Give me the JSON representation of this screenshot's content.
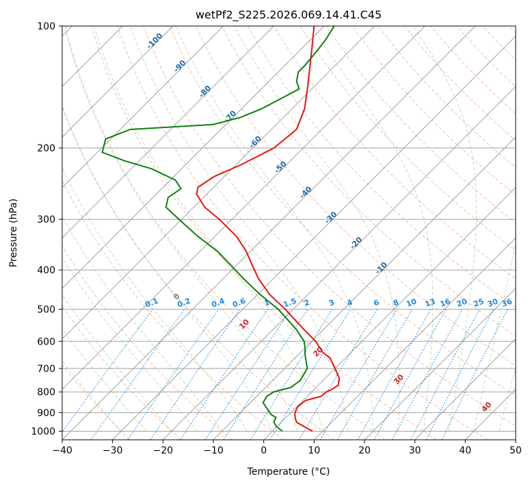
{
  "chart_data": {
    "type": "line",
    "title": "wetPf2_S225.2026.069.14.41.C45",
    "xlabel": "Temperature (°C)",
    "ylabel": "Pressure (hPa)",
    "xlim": [
      -40,
      50
    ],
    "ylim": [
      1050,
      100
    ],
    "y_scale": "log",
    "grid": true,
    "skew": 45,
    "x_ticks": [
      -40,
      -30,
      -20,
      -10,
      0,
      10,
      20,
      30,
      40,
      50
    ],
    "y_ticks": [
      100,
      200,
      300,
      400,
      500,
      600,
      700,
      800,
      900,
      1000
    ],
    "series": [
      {
        "key": "temperature",
        "color": "#e8120c",
        "points": [
          [
            1000,
            8.0
          ],
          [
            975,
            5.5
          ],
          [
            950,
            3.0
          ],
          [
            925,
            1.8
          ],
          [
            900,
            0.8
          ],
          [
            870,
            0.2
          ],
          [
            840,
            0.5
          ],
          [
            820,
            2.8
          ],
          [
            800,
            2.9
          ],
          [
            790,
            3.5
          ],
          [
            770,
            4.0
          ],
          [
            740,
            2.8
          ],
          [
            700,
            0.0
          ],
          [
            660,
            -3.0
          ],
          [
            640,
            -5.5
          ],
          [
            600,
            -9.2
          ],
          [
            560,
            -14.0
          ],
          [
            500,
            -21.6
          ],
          [
            460,
            -27.6
          ],
          [
            420,
            -33.0
          ],
          [
            390,
            -36.8
          ],
          [
            360,
            -40.8
          ],
          [
            330,
            -45.8
          ],
          [
            300,
            -52.5
          ],
          [
            280,
            -57.8
          ],
          [
            260,
            -62.0
          ],
          [
            250,
            -63.1
          ],
          [
            235,
            -62.0
          ],
          [
            220,
            -59.0
          ],
          [
            200,
            -55.8
          ],
          [
            180,
            -55.0
          ],
          [
            160,
            -57.5
          ],
          [
            140,
            -61.5
          ],
          [
            125,
            -65.0
          ],
          [
            110,
            -69.0
          ],
          [
            100,
            -72.0
          ]
        ]
      },
      {
        "key": "dewpoint",
        "color": "#0d7e0d",
        "points": [
          [
            1000,
            2.0
          ],
          [
            975,
            0.0
          ],
          [
            950,
            -1.5
          ],
          [
            925,
            -2.0
          ],
          [
            910,
            -3.5
          ],
          [
            880,
            -5.5
          ],
          [
            850,
            -7.5
          ],
          [
            820,
            -8.0
          ],
          [
            800,
            -7.5
          ],
          [
            780,
            -5.0
          ],
          [
            750,
            -4.5
          ],
          [
            700,
            -5.5
          ],
          [
            650,
            -8.5
          ],
          [
            620,
            -10.2
          ],
          [
            600,
            -11.5
          ],
          [
            560,
            -15.5
          ],
          [
            500,
            -23.0
          ],
          [
            460,
            -29.5
          ],
          [
            420,
            -36.0
          ],
          [
            390,
            -41.0
          ],
          [
            360,
            -46.5
          ],
          [
            330,
            -53.5
          ],
          [
            300,
            -60.5
          ],
          [
            280,
            -65.5
          ],
          [
            265,
            -67.0
          ],
          [
            252,
            -66.2
          ],
          [
            240,
            -69.0
          ],
          [
            225,
            -76.0
          ],
          [
            215,
            -83.0
          ],
          [
            205,
            -89.0
          ],
          [
            190,
            -91.0
          ],
          [
            180,
            -88.0
          ],
          [
            177,
            -79.0
          ],
          [
            175,
            -72.5
          ],
          [
            168,
            -68.5
          ],
          [
            160,
            -66.0
          ],
          [
            150,
            -64.0
          ],
          [
            143,
            -62.5
          ],
          [
            137,
            -64.5
          ],
          [
            130,
            -66.0
          ],
          [
            125,
            -66.0
          ],
          [
            115,
            -66.5
          ],
          [
            108,
            -67.0
          ],
          [
            100,
            -68.0
          ]
        ]
      }
    ],
    "dry_adiabat_labels": [
      "-100",
      "-90",
      "-80",
      "-70",
      "-60",
      "-50",
      "-40",
      "-30",
      "-20",
      "-10",
      "0",
      "10",
      "20",
      "30",
      "40"
    ],
    "mixing_ratio_labels": [
      "0.1",
      "0.2",
      "0.4",
      "0.6",
      "1",
      "1.5",
      "2",
      "3",
      "4",
      "6",
      "8",
      "10",
      "13",
      "16",
      "20",
      "25",
      "30",
      "36"
    ],
    "colors": {
      "isotherm": "#a0a0a0",
      "dry_adiabat": "#f08f70",
      "moist_adiabat": "#6fb56f",
      "mixing_ratio": "#1e88e5",
      "dry_adiabat_label_cold": "#1f6aa5",
      "dry_adiabat_label_zero": "#808080",
      "dry_adiabat_label_warm": "#c62828",
      "frame": "#000000"
    }
  }
}
